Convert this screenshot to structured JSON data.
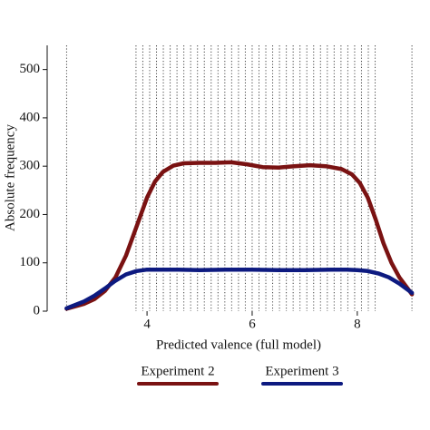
{
  "chart_data": {
    "type": "line",
    "x_label": "Predicted valence (full model)",
    "y_label": "Absolute frequency",
    "xlim": [
      2.1,
      9.28
    ],
    "xticks": [
      4,
      6,
      8
    ],
    "ylim": [
      0,
      550
    ],
    "yticks": [
      0,
      100,
      200,
      300,
      400,
      500
    ],
    "vlines": [
      2.47,
      3.79,
      3.92,
      4.05,
      4.18,
      4.31,
      4.44,
      4.57,
      4.7,
      4.83,
      4.96,
      5.09,
      5.22,
      5.35,
      5.48,
      5.61,
      5.74,
      5.87,
      6.0,
      6.13,
      6.26,
      6.39,
      6.52,
      6.65,
      6.78,
      6.91,
      7.04,
      7.17,
      7.3,
      7.43,
      7.56,
      7.69,
      7.82,
      7.95,
      8.08,
      8.21,
      8.34,
      9.04
    ],
    "series": [
      {
        "name": "Experiment 2",
        "color": "#7a1212",
        "x": [
          2.47,
          2.8,
          3.0,
          3.2,
          3.4,
          3.6,
          3.8,
          4.0,
          4.15,
          4.3,
          4.5,
          4.7,
          5.0,
          5.3,
          5.6,
          5.9,
          6.2,
          6.5,
          6.8,
          7.1,
          7.4,
          7.7,
          7.9,
          8.05,
          8.2,
          8.35,
          8.5,
          8.65,
          8.8,
          9.04
        ],
        "values": [
          5,
          15,
          25,
          42,
          70,
          115,
          175,
          235,
          268,
          288,
          301,
          306,
          307,
          307,
          308,
          304,
          298,
          297,
          300,
          302,
          300,
          294,
          283,
          265,
          235,
          190,
          140,
          100,
          70,
          35
        ]
      },
      {
        "name": "Experiment 3",
        "color": "#0d1a80",
        "x": [
          2.47,
          2.8,
          3.0,
          3.2,
          3.4,
          3.6,
          3.8,
          4.0,
          4.3,
          4.6,
          5.0,
          5.5,
          6.0,
          6.5,
          7.0,
          7.5,
          7.8,
          8.0,
          8.2,
          8.4,
          8.6,
          8.8,
          9.04
        ],
        "values": [
          6,
          20,
          32,
          47,
          63,
          76,
          83,
          86,
          86,
          86,
          85,
          86,
          86,
          85,
          85,
          86,
          86,
          85,
          83,
          78,
          70,
          57,
          38
        ]
      }
    ]
  }
}
